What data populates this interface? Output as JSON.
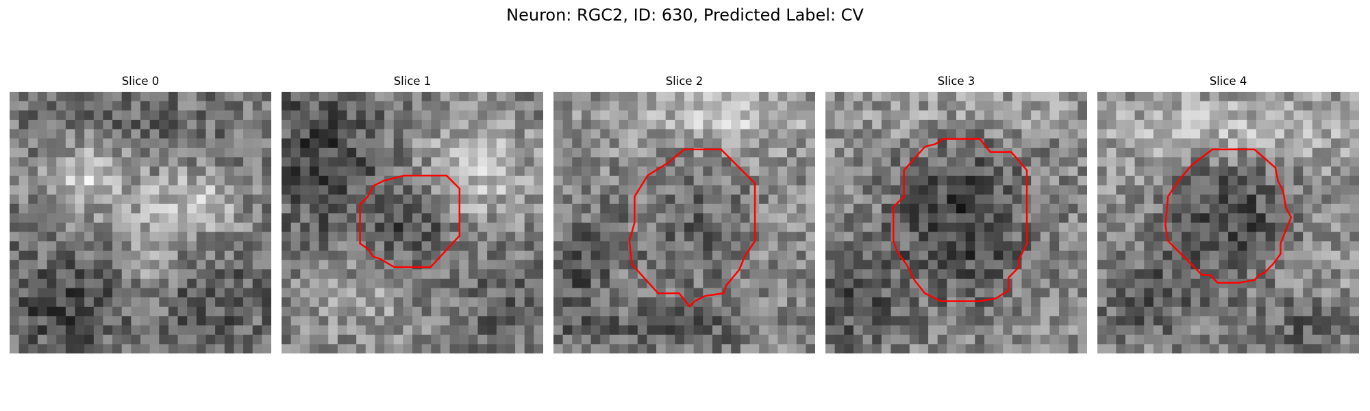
{
  "figure": {
    "title": "Neuron: RGC2, ID: 630, Predicted Label: CV",
    "contour_color": "#ff0000",
    "colormap": "gray"
  },
  "slices": [
    {
      "title": "Slice 0",
      "has_contour": false,
      "contour_points": []
    },
    {
      "title": "Slice 1",
      "has_contour": true,
      "contour_points": [
        [
          0.3,
          0.58
        ],
        [
          0.3,
          0.43
        ],
        [
          0.33,
          0.4
        ],
        [
          0.35,
          0.36
        ],
        [
          0.39,
          0.34
        ],
        [
          0.47,
          0.32
        ],
        [
          0.63,
          0.32
        ],
        [
          0.68,
          0.37
        ],
        [
          0.68,
          0.55
        ],
        [
          0.57,
          0.67
        ],
        [
          0.43,
          0.67
        ],
        [
          0.38,
          0.64
        ],
        [
          0.35,
          0.63
        ],
        [
          0.33,
          0.6
        ]
      ]
    },
    {
      "title": "Slice 2",
      "has_contour": true,
      "contour_points": [
        [
          0.29,
          0.57
        ],
        [
          0.31,
          0.5
        ],
        [
          0.31,
          0.4
        ],
        [
          0.36,
          0.32
        ],
        [
          0.44,
          0.27
        ],
        [
          0.5,
          0.22
        ],
        [
          0.64,
          0.22
        ],
        [
          0.77,
          0.35
        ],
        [
          0.77,
          0.57
        ],
        [
          0.73,
          0.63
        ],
        [
          0.71,
          0.68
        ],
        [
          0.66,
          0.74
        ],
        [
          0.65,
          0.77
        ],
        [
          0.58,
          0.78
        ],
        [
          0.54,
          0.8
        ],
        [
          0.52,
          0.82
        ],
        [
          0.48,
          0.77
        ],
        [
          0.4,
          0.77
        ],
        [
          0.3,
          0.66
        ]
      ]
    },
    {
      "title": "Slice 3",
      "has_contour": true,
      "contour_points": [
        [
          0.26,
          0.57
        ],
        [
          0.26,
          0.44
        ],
        [
          0.3,
          0.4
        ],
        [
          0.3,
          0.3
        ],
        [
          0.38,
          0.21
        ],
        [
          0.42,
          0.2
        ],
        [
          0.45,
          0.18
        ],
        [
          0.59,
          0.18
        ],
        [
          0.63,
          0.23
        ],
        [
          0.71,
          0.23
        ],
        [
          0.77,
          0.3
        ],
        [
          0.77,
          0.58
        ],
        [
          0.74,
          0.64
        ],
        [
          0.74,
          0.67
        ],
        [
          0.7,
          0.71
        ],
        [
          0.7,
          0.76
        ],
        [
          0.65,
          0.79
        ],
        [
          0.59,
          0.8
        ],
        [
          0.49,
          0.8
        ],
        [
          0.44,
          0.8
        ],
        [
          0.38,
          0.77
        ],
        [
          0.34,
          0.72
        ],
        [
          0.31,
          0.66
        ],
        [
          0.28,
          0.62
        ],
        [
          0.27,
          0.6
        ]
      ]
    },
    {
      "title": "Slice 4",
      "has_contour": true,
      "contour_points": [
        [
          0.26,
          0.51
        ],
        [
          0.27,
          0.4
        ],
        [
          0.31,
          0.34
        ],
        [
          0.36,
          0.28
        ],
        [
          0.44,
          0.22
        ],
        [
          0.6,
          0.22
        ],
        [
          0.68,
          0.29
        ],
        [
          0.69,
          0.34
        ],
        [
          0.71,
          0.38
        ],
        [
          0.72,
          0.44
        ],
        [
          0.74,
          0.48
        ],
        [
          0.72,
          0.53
        ],
        [
          0.7,
          0.58
        ],
        [
          0.7,
          0.62
        ],
        [
          0.67,
          0.66
        ],
        [
          0.64,
          0.69
        ],
        [
          0.62,
          0.7
        ],
        [
          0.6,
          0.72
        ],
        [
          0.54,
          0.73
        ],
        [
          0.46,
          0.73
        ],
        [
          0.43,
          0.7
        ],
        [
          0.4,
          0.7
        ],
        [
          0.34,
          0.64
        ],
        [
          0.3,
          0.6
        ],
        [
          0.27,
          0.57
        ]
      ]
    }
  ]
}
